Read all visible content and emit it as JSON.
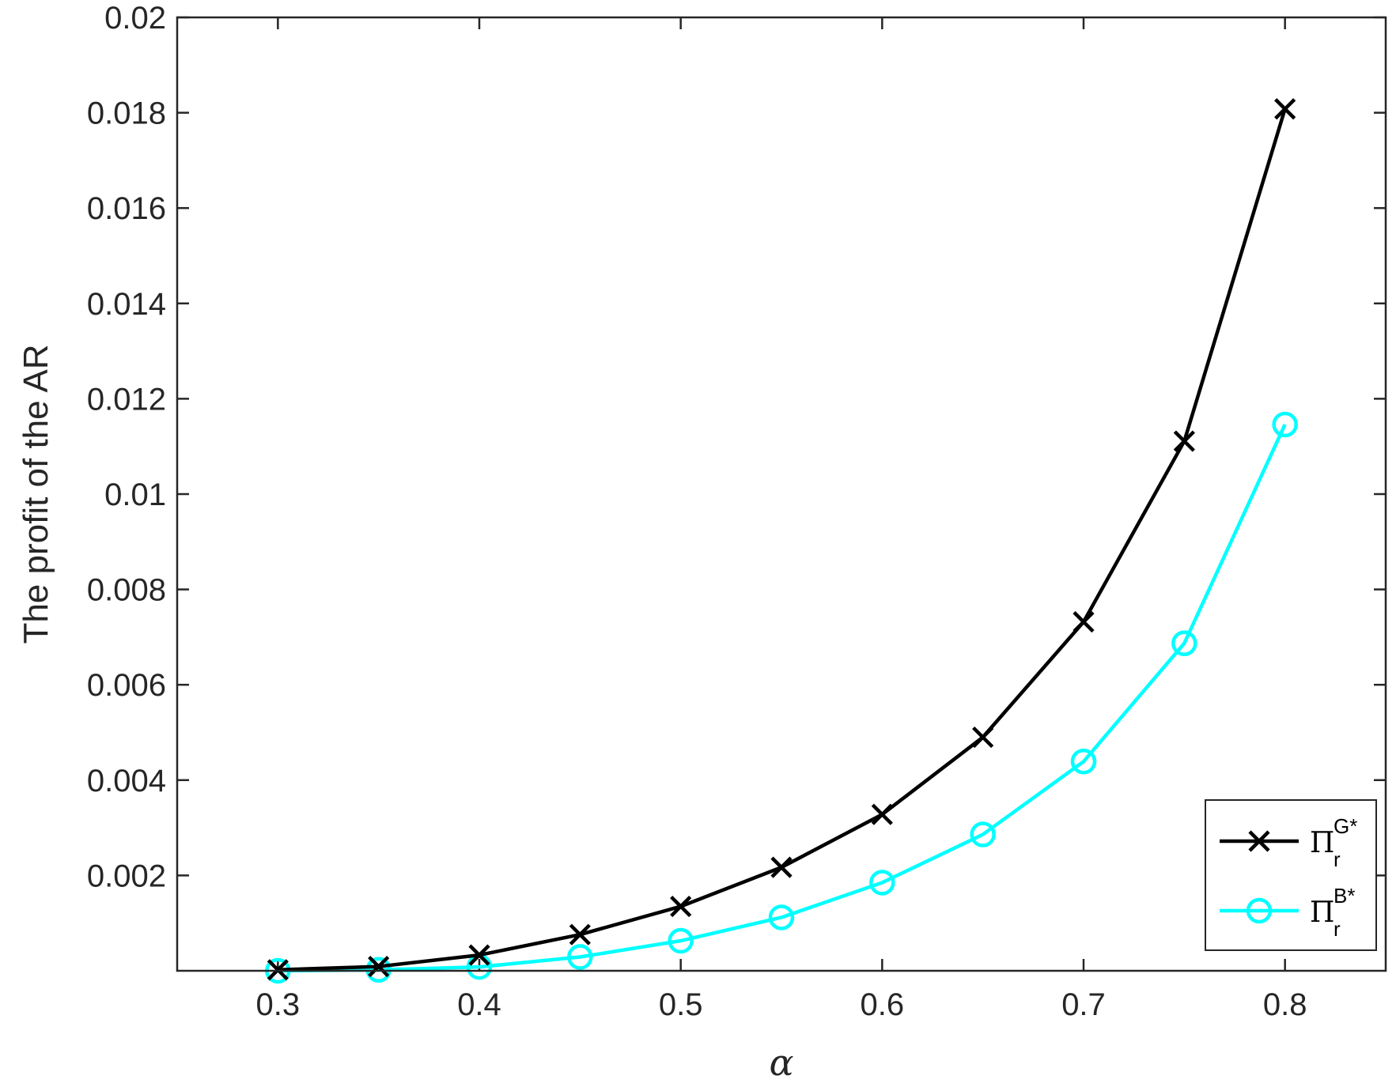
{
  "chart_data": {
    "type": "line",
    "title": "",
    "xlabel": "α",
    "ylabel": "The profit of the AR",
    "xlim": [
      0.25,
      0.85
    ],
    "ylim": [
      0,
      0.02
    ],
    "xticks": [
      0.3,
      0.4,
      0.5,
      0.6,
      0.7,
      0.8
    ],
    "xtick_labels": [
      "0.3",
      "0.4",
      "0.5",
      "0.6",
      "0.7",
      "0.8"
    ],
    "yticks": [
      0.002,
      0.004,
      0.006,
      0.008,
      0.01,
      0.012,
      0.014,
      0.016,
      0.018,
      0.02
    ],
    "ytick_labels": [
      "0.002",
      "0.004",
      "0.006",
      "0.008",
      "0.01",
      "0.012",
      "0.014",
      "0.016",
      "0.018",
      "0.02"
    ],
    "grid": false,
    "legend_position": "bottom-right",
    "x": [
      0.3,
      0.35,
      0.4,
      0.45,
      0.5,
      0.55,
      0.6,
      0.65,
      0.7,
      0.75,
      0.8
    ],
    "series": [
      {
        "name": "Π",
        "sub": "r",
        "sup": "G*",
        "color": "#000000",
        "marker": "x",
        "values": [
          2e-05,
          9e-05,
          0.00033,
          0.00076,
          0.00135,
          0.00217,
          0.00328,
          0.0049,
          0.00732,
          0.01111,
          0.01808
        ]
      },
      {
        "name": "Π",
        "sub": "r",
        "sup": "B*",
        "color": "#00FFFF",
        "marker": "o",
        "values": [
          0.0,
          2e-05,
          8e-05,
          0.00029,
          0.00063,
          0.00112,
          0.00185,
          0.00286,
          0.00439,
          0.00687,
          0.01146
        ]
      }
    ]
  }
}
